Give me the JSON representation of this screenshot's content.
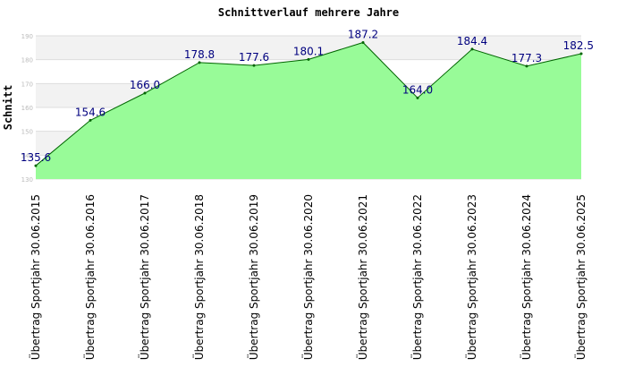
{
  "chart_data": {
    "type": "area",
    "title": "Schnittverlauf mehrere Jahre",
    "xlabel": "",
    "ylabel": "Schnitt",
    "ylim": [
      130,
      190
    ],
    "yticks": [
      130,
      140,
      150,
      160,
      170,
      180,
      190
    ],
    "ytick_labels": [
      "130",
      "140",
      "150",
      "160",
      "170",
      "180",
      "190"
    ],
    "grid": true,
    "categories": [
      "Übertrag Sportjahr 30.06.2015",
      "Übertrag Sportjahr 30.06.2016",
      "Übertrag Sportjahr 30.06.2017",
      "Übertrag Sportjahr 30.06.2018",
      "Übertrag Sportjahr 30.06.2019",
      "Übertrag Sportjahr 30.06.2020",
      "Übertrag Sportjahr 30.06.2021",
      "Übertrag Sportjahr 30.06.2022",
      "Übertrag Sportjahr 30.06.2023",
      "Übertrag Sportjahr 30.06.2024",
      "Übertrag Sportjahr 30.06.2025"
    ],
    "values": [
      135.6,
      154.6,
      166.0,
      178.8,
      177.6,
      180.1,
      187.2,
      164.0,
      184.4,
      177.3,
      182.5
    ],
    "value_labels": [
      "135.6",
      "154.6",
      "166.0",
      "178.8",
      "177.6",
      "180.1",
      "187.2",
      "164.0",
      "184.4",
      "177.3",
      "182.5"
    ],
    "colors": {
      "fill": "#98fb98",
      "line": "#006400",
      "data_label": "#00007f",
      "band": "#f2f2f2",
      "grid": "#dddddd"
    }
  }
}
